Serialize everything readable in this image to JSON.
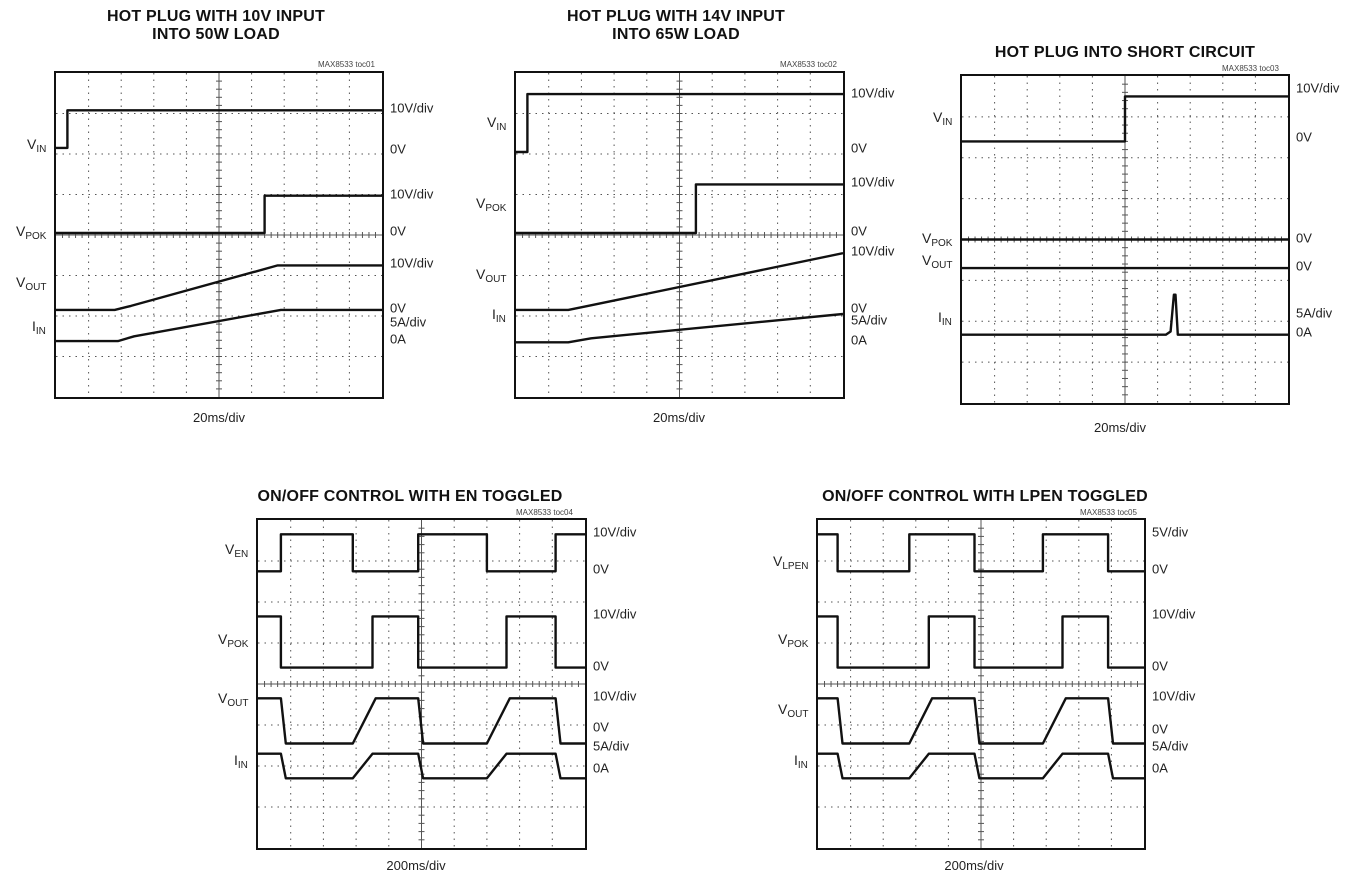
{
  "colors": {
    "trace": "#111111",
    "grid": "#555555",
    "frame": "#111111",
    "background": "#ffffff"
  },
  "chart_data": [
    {
      "type": "line",
      "id": "toc01",
      "title": "HOT PLUG WITH 10V INPUT\nINTO 50W LOAD",
      "tag": "MAX8533 toc01",
      "xlabel": "20ms/div",
      "grid": {
        "xdiv": 10,
        "ydiv": 8
      },
      "traces": [
        {
          "base": "V",
          "sub": "IN",
          "label_y": 1.8,
          "scale": "10V/div",
          "scale_y": 0.92,
          "zero": "0V",
          "zero_y": 1.92,
          "points": [
            [
              0,
              1.85
            ],
            [
              0.35,
              1.85
            ],
            [
              0.35,
              0.92
            ],
            [
              10,
              0.92
            ]
          ]
        },
        {
          "base": "V",
          "sub": "POK",
          "label_y": 3.95,
          "scale": "10V/div",
          "scale_y": 3.03,
          "zero": "0V",
          "zero_y": 3.95,
          "points": [
            [
              0,
              3.95
            ],
            [
              6.4,
              3.95
            ],
            [
              6.4,
              3.03
            ],
            [
              10,
              3.03
            ]
          ]
        },
        {
          "base": "V",
          "sub": "OUT",
          "label_y": 5.2,
          "scale": "10V/div",
          "scale_y": 4.75,
          "zero": "0V",
          "zero_y": 5.85,
          "points": [
            [
              0,
              5.85
            ],
            [
              1.8,
              5.85
            ],
            [
              2.3,
              5.75
            ],
            [
              6.8,
              4.75
            ],
            [
              10,
              4.75
            ]
          ]
        },
        {
          "base": "I",
          "sub": "IN",
          "label_y": 6.3,
          "scale": "5A/div",
          "scale_y": 6.2,
          "zero": "0A",
          "zero_y": 6.62,
          "points": [
            [
              0,
              6.62
            ],
            [
              1.9,
              6.62
            ],
            [
              2.4,
              6.5
            ],
            [
              6.9,
              5.85
            ],
            [
              10,
              5.85
            ]
          ]
        }
      ]
    },
    {
      "type": "line",
      "id": "toc02",
      "title": "HOT PLUG WITH 14V INPUT\nINTO 65W LOAD",
      "tag": "MAX8533 toc02",
      "xlabel": "20ms/div",
      "grid": {
        "xdiv": 10,
        "ydiv": 8
      },
      "traces": [
        {
          "base": "V",
          "sub": "IN",
          "label_y": 1.25,
          "scale": "10V/div",
          "scale_y": 0.55,
          "zero": "0V",
          "zero_y": 1.9,
          "points": [
            [
              0,
              1.95
            ],
            [
              0.35,
              1.95
            ],
            [
              0.35,
              0.52
            ],
            [
              10,
              0.52
            ]
          ]
        },
        {
          "base": "V",
          "sub": "POK",
          "label_y": 3.25,
          "scale": "10V/div",
          "scale_y": 2.75,
          "zero": "0V",
          "zero_y": 3.95,
          "points": [
            [
              0,
              3.95
            ],
            [
              5.5,
              3.95
            ],
            [
              5.5,
              2.75
            ],
            [
              10,
              2.75
            ]
          ]
        },
        {
          "base": "V",
          "sub": "OUT",
          "label_y": 5.0,
          "scale": "10V/div",
          "scale_y": 4.45,
          "zero": "0V",
          "zero_y": 5.85,
          "points": [
            [
              0,
              5.85
            ],
            [
              1.6,
              5.85
            ],
            [
              2.2,
              5.75
            ],
            [
              10,
              4.45
            ]
          ]
        },
        {
          "base": "I",
          "sub": "IN",
          "label_y": 6.0,
          "scale": "5A/div",
          "scale_y": 6.15,
          "zero": "0A",
          "zero_y": 6.65,
          "points": [
            [
              0,
              6.65
            ],
            [
              1.6,
              6.65
            ],
            [
              2.3,
              6.55
            ],
            [
              10,
              5.95
            ]
          ]
        }
      ]
    },
    {
      "type": "line",
      "id": "toc03",
      "title": "HOT PLUG INTO SHORT CIRCUIT",
      "tag": "MAX8533 toc03",
      "xlabel": "20ms/div",
      "grid": {
        "xdiv": 10,
        "ydiv": 8
      },
      "traces": [
        {
          "base": "V",
          "sub": "IN",
          "label_y": 1.05,
          "scale": "10V/div",
          "scale_y": 0.35,
          "zero": "0V",
          "zero_y": 1.55,
          "points": [
            [
              0,
              1.6
            ],
            [
              5.0,
              1.6
            ],
            [
              5.0,
              0.5
            ],
            [
              10,
              0.5
            ]
          ]
        },
        {
          "base": "V",
          "sub": "POK",
          "label_y": 4.0,
          "scale": "",
          "scale_y": 0,
          "zero": "0V",
          "zero_y": 4.0,
          "points": [
            [
              0,
              4.0
            ],
            [
              10,
              4.0
            ]
          ]
        },
        {
          "base": "V",
          "sub": "OUT",
          "label_y": 4.55,
          "scale": "",
          "scale_y": 0,
          "zero": "0V",
          "zero_y": 4.7,
          "points": [
            [
              0,
              4.7
            ],
            [
              10,
              4.7
            ]
          ]
        },
        {
          "base": "I",
          "sub": "IN",
          "label_y": 5.95,
          "scale": "5A/div",
          "scale_y": 5.85,
          "zero": "0A",
          "zero_y": 6.3,
          "points": [
            [
              0,
              6.33
            ],
            [
              6.25,
              6.33
            ],
            [
              6.4,
              6.25
            ],
            [
              6.5,
              5.35
            ],
            [
              6.55,
              5.35
            ],
            [
              6.62,
              6.33
            ],
            [
              10,
              6.33
            ]
          ]
        }
      ]
    },
    {
      "type": "line",
      "id": "toc04",
      "title": "ON/OFF CONTROL WITH EN TOGGLED",
      "tag": "MAX8533 toc04",
      "xlabel": "200ms/div",
      "grid": {
        "xdiv": 10,
        "ydiv": 8
      },
      "traces": [
        {
          "base": "V",
          "sub": "EN",
          "label_y": 0.75,
          "scale": "10V/div",
          "scale_y": 0.35,
          "zero": "0V",
          "zero_y": 1.25,
          "points": [
            [
              0,
              1.25
            ],
            [
              0.7,
              1.25
            ],
            [
              0.7,
              0.35
            ],
            [
              2.9,
              0.35
            ],
            [
              2.9,
              1.25
            ],
            [
              4.9,
              1.25
            ],
            [
              4.9,
              0.35
            ],
            [
              7.0,
              0.35
            ],
            [
              7.0,
              1.25
            ],
            [
              9.1,
              1.25
            ],
            [
              9.1,
              0.35
            ],
            [
              10,
              0.35
            ]
          ]
        },
        {
          "base": "V",
          "sub": "POK",
          "label_y": 2.95,
          "scale": "10V/div",
          "scale_y": 2.35,
          "zero": "0V",
          "zero_y": 3.6,
          "points": [
            [
              0,
              2.35
            ],
            [
              0.7,
              2.35
            ],
            [
              0.7,
              3.6
            ],
            [
              3.5,
              3.6
            ],
            [
              3.5,
              2.35
            ],
            [
              4.9,
              2.35
            ],
            [
              4.9,
              3.6
            ],
            [
              7.6,
              3.6
            ],
            [
              7.6,
              2.35
            ],
            [
              9.1,
              2.35
            ],
            [
              9.1,
              3.6
            ],
            [
              10,
              3.6
            ]
          ]
        },
        {
          "base": "V",
          "sub": "OUT",
          "label_y": 4.4,
          "scale": "10V/div",
          "scale_y": 4.35,
          "zero": "0V",
          "zero_y": 5.1,
          "points": [
            [
              0,
              4.35
            ],
            [
              0.7,
              4.35
            ],
            [
              0.85,
              5.45
            ],
            [
              2.9,
              5.45
            ],
            [
              3.6,
              4.35
            ],
            [
              4.9,
              4.35
            ],
            [
              5.05,
              5.45
            ],
            [
              7.0,
              5.45
            ],
            [
              7.7,
              4.35
            ],
            [
              9.1,
              4.35
            ],
            [
              9.25,
              5.45
            ],
            [
              10,
              5.45
            ]
          ]
        },
        {
          "base": "I",
          "sub": "IN",
          "label_y": 5.9,
          "scale": "5A/div",
          "scale_y": 5.55,
          "zero": "0A",
          "zero_y": 6.1,
          "points": [
            [
              0,
              5.7
            ],
            [
              0.7,
              5.7
            ],
            [
              0.85,
              6.3
            ],
            [
              2.9,
              6.3
            ],
            [
              3.5,
              5.7
            ],
            [
              4.9,
              5.7
            ],
            [
              5.05,
              6.3
            ],
            [
              7.0,
              6.3
            ],
            [
              7.6,
              5.7
            ],
            [
              9.1,
              5.7
            ],
            [
              9.25,
              6.3
            ],
            [
              10,
              6.3
            ]
          ]
        }
      ]
    },
    {
      "type": "line",
      "id": "toc05",
      "title": "ON/OFF CONTROL WITH LPEN TOGGLED",
      "tag": "MAX8533 toc05",
      "xlabel": "200ms/div",
      "grid": {
        "xdiv": 10,
        "ydiv": 8
      },
      "traces": [
        {
          "base": "V",
          "sub": "LPEN",
          "label_y": 1.05,
          "scale": "5V/div",
          "scale_y": 0.35,
          "zero": "0V",
          "zero_y": 1.25,
          "points": [
            [
              0,
              0.35
            ],
            [
              0.6,
              0.35
            ],
            [
              0.6,
              1.25
            ],
            [
              2.8,
              1.25
            ],
            [
              2.8,
              0.35
            ],
            [
              4.8,
              0.35
            ],
            [
              4.8,
              1.25
            ],
            [
              6.9,
              1.25
            ],
            [
              6.9,
              0.35
            ],
            [
              8.9,
              0.35
            ],
            [
              8.9,
              1.25
            ],
            [
              10,
              1.25
            ]
          ]
        },
        {
          "base": "V",
          "sub": "POK",
          "label_y": 2.95,
          "scale": "10V/div",
          "scale_y": 2.35,
          "zero": "0V",
          "zero_y": 3.6,
          "points": [
            [
              0,
              2.35
            ],
            [
              0.6,
              2.35
            ],
            [
              0.6,
              3.6
            ],
            [
              3.4,
              3.6
            ],
            [
              3.4,
              2.35
            ],
            [
              4.8,
              2.35
            ],
            [
              4.8,
              3.6
            ],
            [
              7.5,
              3.6
            ],
            [
              7.5,
              2.35
            ],
            [
              8.9,
              2.35
            ],
            [
              8.9,
              3.6
            ],
            [
              10,
              3.6
            ]
          ]
        },
        {
          "base": "V",
          "sub": "OUT",
          "label_y": 4.65,
          "scale": "10V/div",
          "scale_y": 4.35,
          "zero": "0V",
          "zero_y": 5.15,
          "points": [
            [
              0,
              4.35
            ],
            [
              0.6,
              4.35
            ],
            [
              0.75,
              5.45
            ],
            [
              2.8,
              5.45
            ],
            [
              3.5,
              4.35
            ],
            [
              4.8,
              4.35
            ],
            [
              4.95,
              5.45
            ],
            [
              6.9,
              5.45
            ],
            [
              7.6,
              4.35
            ],
            [
              8.9,
              4.35
            ],
            [
              9.05,
              5.45
            ],
            [
              10,
              5.45
            ]
          ]
        },
        {
          "base": "I",
          "sub": "IN",
          "label_y": 5.9,
          "scale": "5A/div",
          "scale_y": 5.55,
          "zero": "0A",
          "zero_y": 6.1,
          "points": [
            [
              0,
              5.7
            ],
            [
              0.6,
              5.7
            ],
            [
              0.75,
              6.3
            ],
            [
              2.8,
              6.3
            ],
            [
              3.4,
              5.7
            ],
            [
              4.8,
              5.7
            ],
            [
              4.95,
              6.3
            ],
            [
              6.9,
              6.3
            ],
            [
              7.5,
              5.7
            ],
            [
              8.9,
              5.7
            ],
            [
              9.05,
              6.3
            ],
            [
              10,
              6.3
            ]
          ]
        }
      ]
    }
  ]
}
